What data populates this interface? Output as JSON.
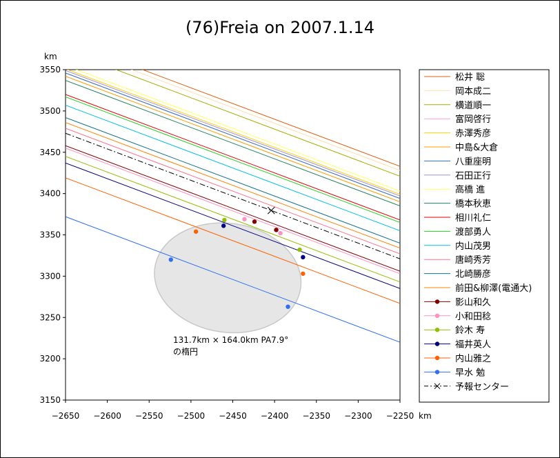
{
  "chart_data": {
    "type": "line",
    "title": "(76)Freia on 2007.1.14",
    "xlabel": "km",
    "ylabel": "km",
    "xlim": [
      -2650,
      -2250
    ],
    "ylim": [
      3150,
      3550
    ],
    "xticks": [
      "−2650",
      "−2600",
      "−2550",
      "−2500",
      "−2450",
      "−2400",
      "−2350",
      "−2300",
      "−2250"
    ],
    "yticks": [
      "3150",
      "3200",
      "3250",
      "3300",
      "3350",
      "3400",
      "3450",
      "3500",
      "3550"
    ],
    "grid": false,
    "legend_position": "right",
    "slope": -0.38,
    "ellipse": {
      "center": [
        -2456,
        3298
      ],
      "x_radius": 88,
      "y_radius": 66,
      "label_line1": "131.7km × 164.0km  PA7.9°",
      "label_line2": "の楕円"
    },
    "center_line": {
      "name": "予報センター",
      "intercept_at_xmin": 3473,
      "color": "#000000",
      "marker_x": -2404
    },
    "series": [
      {
        "name": "松井 聡",
        "color": "#e06010",
        "intercept_at_xmin": 3585,
        "marker": false
      },
      {
        "name": "岡本成二",
        "color": "#ffe0b0",
        "intercept_at_xmin": 3580,
        "marker": false
      },
      {
        "name": "横道順一",
        "color": "#a0b000",
        "intercept_at_xmin": 3573,
        "marker": false
      },
      {
        "name": "富岡啓行",
        "color": "#ffa0d0",
        "intercept_at_xmin": 3546,
        "marker": false
      },
      {
        "name": "赤澤秀彦",
        "color": "#ffd000",
        "intercept_at_xmin": 3551,
        "marker": false
      },
      {
        "name": "中島&大倉",
        "color": "#ff9900",
        "intercept_at_xmin": 3542,
        "marker": false
      },
      {
        "name": "八重座明",
        "color": "#3070c0",
        "intercept_at_xmin": 3546,
        "marker": false
      },
      {
        "name": "石田正行",
        "color": "#a090e0",
        "intercept_at_xmin": 3549,
        "marker": false
      },
      {
        "name": "高橋 進",
        "color": "#ffff60",
        "intercept_at_xmin": 3555,
        "marker": false
      },
      {
        "name": "橋本秋恵",
        "color": "#208060",
        "intercept_at_xmin": 3537,
        "marker": false
      },
      {
        "name": "相川礼仁",
        "color": "#e00000",
        "intercept_at_xmin": 3520,
        "marker": false
      },
      {
        "name": "渡部勇人",
        "color": "#20d020",
        "intercept_at_xmin": 3517,
        "marker": false
      },
      {
        "name": "内山茂男",
        "color": "#00c0e0",
        "intercept_at_xmin": 3507,
        "marker": false
      },
      {
        "name": "唐崎秀芳",
        "color": "#ff7090",
        "intercept_at_xmin": 3479,
        "marker": false
      },
      {
        "name": "北崎勝彦",
        "color": "#107090",
        "intercept_at_xmin": 3492,
        "marker": false
      },
      {
        "name": "前田&柳澤(電通大)",
        "color": "#ff8000",
        "intercept_at_xmin": 3486,
        "marker": false
      },
      {
        "name": "影山和久",
        "color": "#800000",
        "intercept_at_xmin": 3458,
        "marker": true,
        "points": [
          [
            -2424,
            3366
          ],
          [
            -2398,
            3356
          ]
        ]
      },
      {
        "name": "小和田稔",
        "color": "#ff90c0",
        "intercept_at_xmin": 3455,
        "marker": true,
        "points": [
          [
            -2436,
            3369
          ],
          [
            -2393,
            3352
          ]
        ]
      },
      {
        "name": "鈴木 寿",
        "color": "#90c000",
        "intercept_at_xmin": 3445,
        "marker": true,
        "points": [
          [
            -2460,
            3368
          ],
          [
            -2370,
            3332
          ]
        ]
      },
      {
        "name": "福井英人",
        "color": "#000080",
        "intercept_at_xmin": 3437,
        "marker": true,
        "points": [
          [
            -2461,
            3361
          ],
          [
            -2366,
            3323
          ]
        ]
      },
      {
        "name": "内山雅之",
        "color": "#ff6000",
        "intercept_at_xmin": 3419,
        "marker": true,
        "points": [
          [
            -2494,
            3354
          ],
          [
            -2366,
            3303
          ]
        ]
      },
      {
        "name": "早水 勉",
        "color": "#3070f0",
        "intercept_at_xmin": 3372,
        "marker": true,
        "points": [
          [
            -2524,
            3320
          ],
          [
            -2384,
            3263
          ]
        ]
      }
    ]
  }
}
